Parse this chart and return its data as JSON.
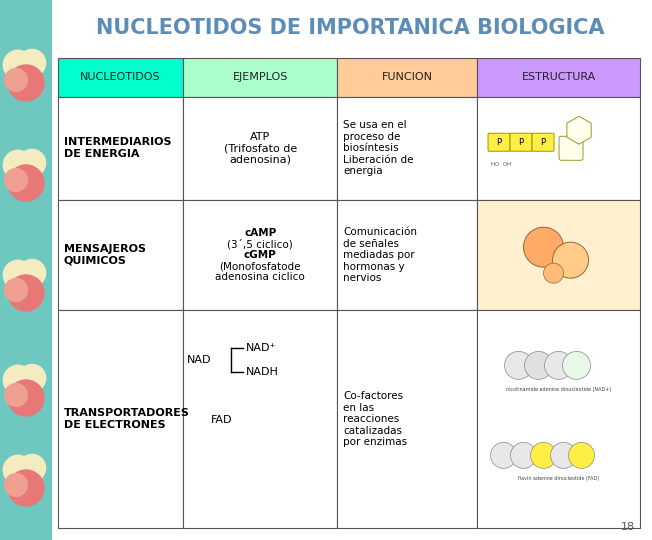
{
  "title": "NUCLEOTIDOS DE IMPORTANICA BIOLOGICA",
  "title_color": "#5B8DB8",
  "header_row": [
    "NUCLEOTIDOS",
    "EJEMPLOS",
    "FUNCION",
    "ESTRUCTURA"
  ],
  "header_colors": [
    "#00FFCC",
    "#AAFFCC",
    "#FFCC99",
    "#CC99FF"
  ],
  "row0_nucleotidos": "INTERMEDIARIOS\nDE ENERGIA",
  "row0_ejemplos": "ATP\n(Trifosfato de\nadenosina)",
  "row0_funcion": "Se usa en el\nproceso de\nbiosíntesis\nLiberación de\nenergia",
  "row1_nucleotidos": "MENSAJEROS\nQUIMICOS",
  "row1_ejemplos_bold1": "cAMP",
  "row1_ejemplos_line2": "(3´,5 ciclico)",
  "row1_ejemplos_bold2": "cGMP",
  "row1_ejemplos_line4": "(Monofosfatode",
  "row1_ejemplos_line5": "adenosina ciclico",
  "row1_funcion": "Comunicación\nde señales\nmediadas por\nhormonas y\nnervios",
  "row2_nucleotidos": "TRANSPORTADORES\nDE ELECTRONES",
  "row2_funcion": "Co-factores\nen las\nreacciones\ncatalizadas\npor enzimas",
  "border_color": "#555555",
  "page_number": "18",
  "bg_color": "#ffffff",
  "strip_color": "#6EC8C0"
}
